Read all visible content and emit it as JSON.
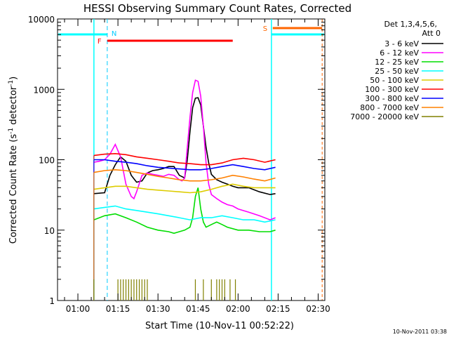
{
  "chart_data": {
    "type": "line",
    "title": "HESSI Observing Summary Count Rates, Corrected",
    "xlabel": "Start Time (10-Nov-11 00:52:22)",
    "ylabel_main": "Corrected Count Rate (s",
    "ylabel_sup1": "-1",
    "ylabel_mid": " detector",
    "ylabel_sup2": "-1",
    "ylabel_end": ")",
    "ylog": true,
    "ylim": [
      1,
      10000
    ],
    "xlim_minutes": [
      52.37,
      152.5
    ],
    "x_ticks": [
      {
        "label": "01:00",
        "min": 60
      },
      {
        "label": "01:15",
        "min": 75
      },
      {
        "label": "01:30",
        "min": 90
      },
      {
        "label": "01:45",
        "min": 105
      },
      {
        "label": "02:00",
        "min": 120
      },
      {
        "label": "02:15",
        "min": 135
      },
      {
        "label": "02:30",
        "min": 150
      }
    ],
    "y_ticks": [
      {
        "label": "1",
        "v": 1
      },
      {
        "label": "10",
        "v": 10
      },
      {
        "label": "100",
        "v": 100
      },
      {
        "label": "1000",
        "v": 1000
      },
      {
        "label": "10000",
        "v": 10000
      }
    ],
    "legend_header": [
      "Det 1,3,4,5,6,",
      "Att 0"
    ],
    "series": [
      {
        "name": "3 - 6 keV",
        "color": "#000000",
        "points": [
          [
            66,
            33
          ],
          [
            70,
            34
          ],
          [
            72,
            60
          ],
          [
            74,
            85
          ],
          [
            76,
            110
          ],
          [
            78,
            95
          ],
          [
            80,
            60
          ],
          [
            82,
            48
          ],
          [
            84,
            50
          ],
          [
            86,
            65
          ],
          [
            88,
            70
          ],
          [
            90,
            72
          ],
          [
            92,
            75
          ],
          [
            94,
            80
          ],
          [
            96,
            80
          ],
          [
            98,
            60
          ],
          [
            100,
            55
          ],
          [
            101,
            100
          ],
          [
            102,
            250
          ],
          [
            103,
            550
          ],
          [
            104,
            750
          ],
          [
            105,
            760
          ],
          [
            106,
            600
          ],
          [
            107,
            300
          ],
          [
            108,
            150
          ],
          [
            109,
            90
          ],
          [
            110,
            62
          ],
          [
            112,
            52
          ],
          [
            114,
            48
          ],
          [
            116,
            45
          ],
          [
            118,
            42
          ],
          [
            120,
            40
          ],
          [
            124,
            40
          ],
          [
            128,
            35
          ],
          [
            132,
            32
          ],
          [
            134,
            33
          ]
        ]
      },
      {
        "name": "6 - 12 keV",
        "color": "#ff00ff",
        "points": [
          [
            66,
            92
          ],
          [
            68,
            95
          ],
          [
            70,
            100
          ],
          [
            72,
            120
          ],
          [
            74,
            165
          ],
          [
            76,
            110
          ],
          [
            78,
            45
          ],
          [
            80,
            30
          ],
          [
            81,
            28
          ],
          [
            82,
            35
          ],
          [
            84,
            60
          ],
          [
            86,
            65
          ],
          [
            88,
            62
          ],
          [
            90,
            60
          ],
          [
            92,
            58
          ],
          [
            94,
            62
          ],
          [
            96,
            60
          ],
          [
            98,
            52
          ],
          [
            99,
            50
          ],
          [
            100,
            55
          ],
          [
            101,
            150
          ],
          [
            102,
            400
          ],
          [
            103,
            900
          ],
          [
            104,
            1350
          ],
          [
            105,
            1300
          ],
          [
            106,
            800
          ],
          [
            107,
            300
          ],
          [
            108,
            90
          ],
          [
            109,
            45
          ],
          [
            110,
            32
          ],
          [
            112,
            28
          ],
          [
            114,
            25
          ],
          [
            116,
            23
          ],
          [
            118,
            22
          ],
          [
            120,
            20
          ],
          [
            124,
            18
          ],
          [
            128,
            16
          ],
          [
            132,
            14
          ],
          [
            134,
            15
          ]
        ]
      },
      {
        "name": "12 - 25 keV",
        "color": "#00dd00",
        "points": [
          [
            66,
            14
          ],
          [
            70,
            16
          ],
          [
            74,
            17
          ],
          [
            78,
            15
          ],
          [
            82,
            13
          ],
          [
            86,
            11
          ],
          [
            90,
            10
          ],
          [
            94,
            9.5
          ],
          [
            96,
            9
          ],
          [
            98,
            9.5
          ],
          [
            100,
            10
          ],
          [
            102,
            11
          ],
          [
            103,
            15
          ],
          [
            104,
            30
          ],
          [
            105,
            40
          ],
          [
            106,
            20
          ],
          [
            107,
            13
          ],
          [
            108,
            11
          ],
          [
            110,
            12
          ],
          [
            112,
            13
          ],
          [
            114,
            12
          ],
          [
            116,
            11
          ],
          [
            120,
            10
          ],
          [
            124,
            10
          ],
          [
            128,
            9.5
          ],
          [
            132,
            9.5
          ],
          [
            134,
            10
          ]
        ]
      },
      {
        "name": "25 - 50 keV",
        "color": "#00ffff",
        "points": [
          [
            66,
            20
          ],
          [
            70,
            21
          ],
          [
            74,
            22
          ],
          [
            78,
            20
          ],
          [
            82,
            19
          ],
          [
            86,
            18
          ],
          [
            90,
            17
          ],
          [
            94,
            16
          ],
          [
            98,
            15
          ],
          [
            102,
            14
          ],
          [
            106,
            15
          ],
          [
            110,
            15
          ],
          [
            114,
            16
          ],
          [
            118,
            15
          ],
          [
            122,
            14
          ],
          [
            126,
            14
          ],
          [
            130,
            13
          ],
          [
            134,
            14
          ]
        ]
      },
      {
        "name": "50 - 100 keV",
        "color": "#ddcc00",
        "points": [
          [
            66,
            38
          ],
          [
            70,
            40
          ],
          [
            74,
            42
          ],
          [
            78,
            42
          ],
          [
            82,
            40
          ],
          [
            86,
            38
          ],
          [
            90,
            37
          ],
          [
            94,
            36
          ],
          [
            98,
            35
          ],
          [
            102,
            34
          ],
          [
            106,
            35
          ],
          [
            110,
            38
          ],
          [
            114,
            42
          ],
          [
            118,
            45
          ],
          [
            122,
            42
          ],
          [
            126,
            40
          ],
          [
            130,
            40
          ],
          [
            134,
            40
          ]
        ]
      },
      {
        "name": "100 - 300 keV",
        "color": "#ff0000",
        "points": [
          [
            66,
            115
          ],
          [
            70,
            120
          ],
          [
            74,
            122
          ],
          [
            78,
            118
          ],
          [
            82,
            110
          ],
          [
            86,
            105
          ],
          [
            90,
            100
          ],
          [
            94,
            95
          ],
          [
            98,
            90
          ],
          [
            102,
            88
          ],
          [
            106,
            85
          ],
          [
            110,
            85
          ],
          [
            114,
            90
          ],
          [
            118,
            100
          ],
          [
            122,
            105
          ],
          [
            126,
            100
          ],
          [
            130,
            92
          ],
          [
            134,
            100
          ]
        ]
      },
      {
        "name": "300 - 800 keV",
        "color": "#0000ff",
        "points": [
          [
            66,
            100
          ],
          [
            70,
            100
          ],
          [
            74,
            95
          ],
          [
            78,
            92
          ],
          [
            82,
            88
          ],
          [
            86,
            82
          ],
          [
            90,
            78
          ],
          [
            94,
            76
          ],
          [
            98,
            74
          ],
          [
            102,
            72
          ],
          [
            106,
            72
          ],
          [
            110,
            75
          ],
          [
            114,
            80
          ],
          [
            118,
            85
          ],
          [
            122,
            80
          ],
          [
            126,
            75
          ],
          [
            130,
            72
          ],
          [
            134,
            78
          ]
        ]
      },
      {
        "name": "800 - 7000 keV",
        "color": "#ff8000",
        "points": [
          [
            66,
            66
          ],
          [
            70,
            70
          ],
          [
            74,
            72
          ],
          [
            78,
            70
          ],
          [
            82,
            66
          ],
          [
            86,
            62
          ],
          [
            90,
            58
          ],
          [
            94,
            55
          ],
          [
            98,
            52
          ],
          [
            102,
            50
          ],
          [
            106,
            50
          ],
          [
            110,
            52
          ],
          [
            114,
            55
          ],
          [
            118,
            60
          ],
          [
            122,
            57
          ],
          [
            126,
            53
          ],
          [
            130,
            50
          ],
          [
            134,
            55
          ]
        ]
      },
      {
        "name": "7000 - 20000 keV",
        "color": "#808000",
        "points": [
          [
            66,
            2
          ],
          [
            75,
            2
          ],
          [
            76,
            2
          ],
          [
            77,
            2
          ],
          [
            78,
            2
          ],
          [
            79,
            2
          ],
          [
            80,
            2
          ],
          [
            81,
            2
          ],
          [
            82,
            2
          ],
          [
            83,
            2
          ],
          [
            84,
            2
          ],
          [
            85,
            2
          ],
          [
            86,
            2
          ],
          [
            104,
            2
          ],
          [
            107,
            2
          ],
          [
            110,
            2
          ],
          [
            112,
            2
          ],
          [
            113,
            2
          ],
          [
            114,
            2
          ],
          [
            115,
            2
          ],
          [
            117,
            2
          ],
          [
            119,
            2
          ]
        ]
      }
    ],
    "annotations": [
      {
        "label": "N",
        "color": "#00ccff",
        "min": 71,
        "kind": "night"
      },
      {
        "label": "F",
        "color": "#ff0000",
        "min": 71,
        "kind": "flare",
        "end": 118
      },
      {
        "label": "S",
        "color": "#ff6600",
        "min": 133,
        "kind": "saa",
        "end": 151.5
      }
    ],
    "footer_stamp": "10-Nov-2011 03:38",
    "grid": false,
    "legend_placement": "right"
  }
}
